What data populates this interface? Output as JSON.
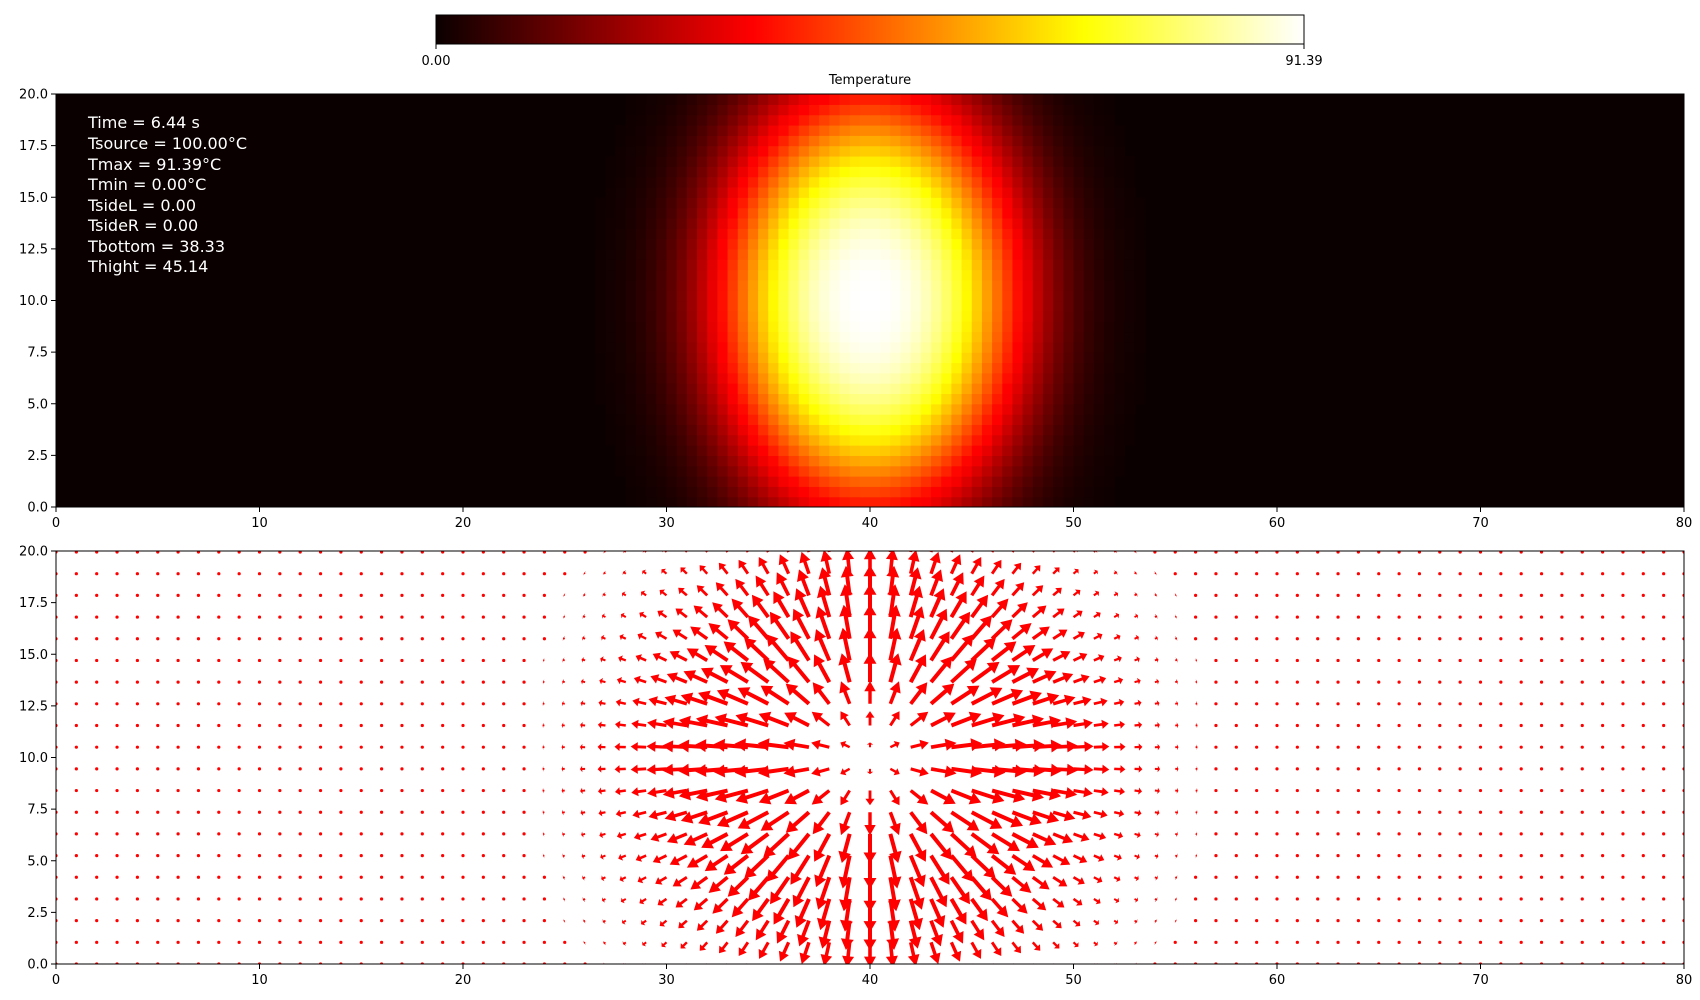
{
  "chart_data": [
    {
      "type": "heatmap",
      "colormap": "hot",
      "colorbar": {
        "label": "Temperature",
        "min": 0.0,
        "max": 91.39,
        "min_label": "0.00",
        "max_label": "91.39",
        "placement": "top"
      },
      "xlim": [
        0,
        80
      ],
      "ylim": [
        0,
        20
      ],
      "xticks": [
        0,
        10,
        20,
        30,
        40,
        50,
        60,
        70,
        80
      ],
      "yticks": [
        "0.0",
        "2.5",
        "5.0",
        "7.5",
        "10.0",
        "12.5",
        "15.0",
        "17.5",
        "20.0"
      ],
      "hot_spot": {
        "center_x": 40,
        "center_y": 10,
        "peak": 91.39
      },
      "annotations": [
        "Time = 6.44 s",
        "Tsource = 100.00°C",
        "Tmax = 91.39°C",
        "Tmin = 0.00°C",
        "TsideL = 0.00",
        "TsideR = 0.00",
        "Tbottom = 38.33",
        "Thight = 45.14"
      ]
    },
    {
      "type": "quiver",
      "color": "#ff0000",
      "xlim": [
        0,
        80
      ],
      "ylim": [
        0,
        20
      ],
      "xticks": [
        0,
        10,
        20,
        30,
        40,
        50,
        60,
        70,
        80
      ],
      "yticks": [
        "0.0",
        "2.5",
        "5.0",
        "7.5",
        "10.0",
        "12.5",
        "15.0",
        "17.5",
        "20.0"
      ],
      "grid_dx": 1.0,
      "grid_dy": 1.05,
      "field_center": {
        "x": 40,
        "y": 10
      },
      "direction": "radially outward (heat flux)"
    }
  ]
}
